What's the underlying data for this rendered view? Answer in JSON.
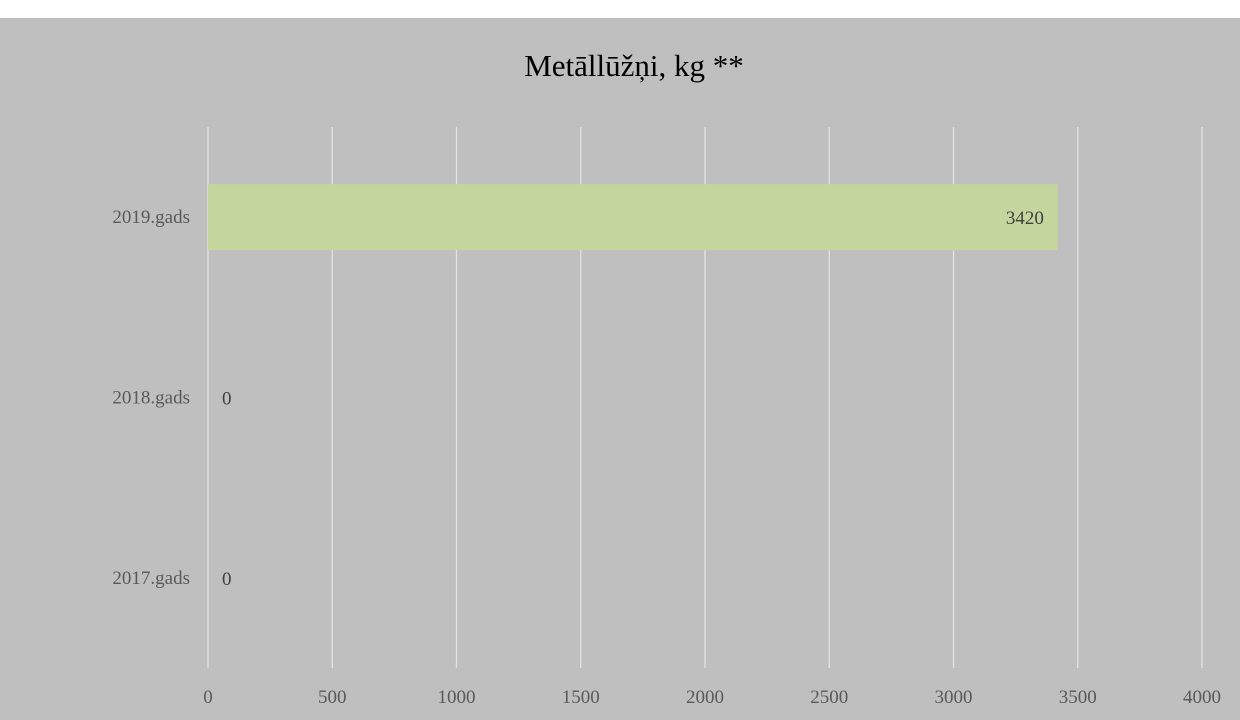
{
  "chart_data": {
    "type": "bar",
    "orientation": "horizontal",
    "title": "Metāllūžņi, kg **",
    "categories": [
      "2019.gads",
      "2018.gads",
      "2017.gads"
    ],
    "values": [
      3420,
      0,
      0
    ],
    "data_labels": [
      "3420",
      "0",
      "0"
    ],
    "xlim": [
      0,
      4000
    ],
    "x_ticks": [
      0,
      500,
      1000,
      1500,
      2000,
      2500,
      3000,
      3500,
      4000
    ],
    "grid": "vertical",
    "legend": "none",
    "bar_color": "#c4d69e",
    "background_color": "#bfbfbf",
    "gridline_color": "#e3e3e3"
  }
}
